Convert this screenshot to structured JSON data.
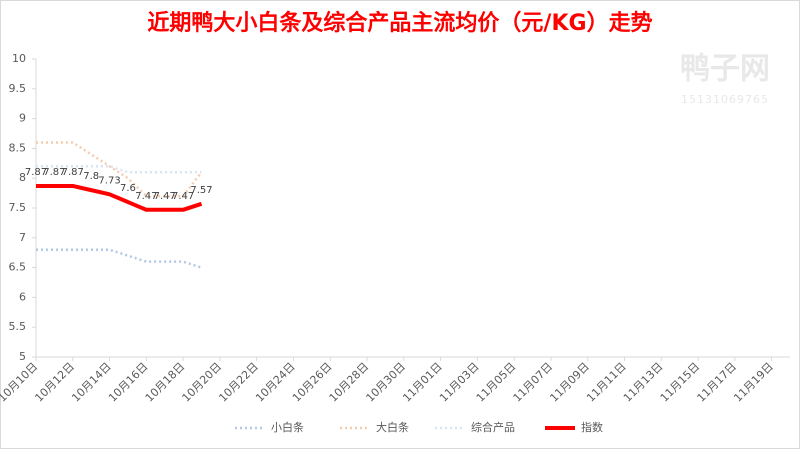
{
  "chart_data": {
    "type": "line",
    "title": "近期鸭大小白条及综合产品主流均价（元/KG）走势",
    "watermark": [
      "鸭子网",
      "15131069765"
    ],
    "categories": [
      "10月10日",
      null,
      "10月12日",
      null,
      "10月14日",
      null,
      "10月16日",
      null,
      "10月18日",
      null,
      "10月20日",
      null,
      "10月22日",
      null,
      "10月24日",
      null,
      "10月26日",
      null,
      "10月28日",
      null,
      "10月30日",
      null,
      "11月01日",
      null,
      "11月03日",
      null,
      "11月05日",
      null,
      "11月07日",
      null,
      "11月09日",
      null,
      "11月11日",
      null,
      "11月13日",
      null,
      "11月15日",
      null,
      "11月17日",
      null,
      "11月19日",
      null
    ],
    "series": [
      {
        "name": "小白条",
        "color": "#b4c7e7",
        "style": "dotted",
        "values": [
          6.8,
          6.8,
          6.8,
          6.8,
          6.8,
          6.7,
          6.6,
          6.6,
          6.6,
          6.5,
          null,
          null,
          null,
          null,
          null,
          null,
          null,
          null,
          null,
          null,
          null,
          null,
          null,
          null,
          null,
          null,
          null,
          null,
          null,
          null,
          null,
          null,
          null,
          null,
          null,
          null,
          null,
          null,
          null,
          null,
          null,
          null
        ]
      },
      {
        "name": "大白条",
        "color": "#f8cbad",
        "style": "dotted",
        "values": [
          8.6,
          8.6,
          8.6,
          8.4,
          8.2,
          8.0,
          7.7,
          7.7,
          7.7,
          8.1,
          null,
          null,
          null,
          null,
          null,
          null,
          null,
          null,
          null,
          null,
          null,
          null,
          null,
          null,
          null,
          null,
          null,
          null,
          null,
          null,
          null,
          null,
          null,
          null,
          null,
          null,
          null,
          null,
          null,
          null,
          null,
          null
        ]
      },
      {
        "name": "综合产品",
        "color": "#dae3f3",
        "style": "dotted",
        "values": [
          8.2,
          8.2,
          8.2,
          8.2,
          8.2,
          8.1,
          8.1,
          8.1,
          8.1,
          8.1,
          null,
          null,
          null,
          null,
          null,
          null,
          null,
          null,
          null,
          null,
          null,
          null,
          null,
          null,
          null,
          null,
          null,
          null,
          null,
          null,
          null,
          null,
          null,
          null,
          null,
          null,
          null,
          null,
          null,
          null,
          null,
          null
        ]
      },
      {
        "name": "指数",
        "color": "#ff0000",
        "style": "thick",
        "labels": true,
        "values": [
          7.87,
          7.87,
          7.87,
          7.8,
          7.73,
          7.6,
          7.47,
          7.47,
          7.47,
          7.57,
          null,
          null,
          null,
          null,
          null,
          null,
          null,
          null,
          null,
          null,
          null,
          null,
          null,
          null,
          null,
          null,
          null,
          null,
          null,
          null,
          null,
          null,
          null,
          null,
          null,
          null,
          null,
          null,
          null,
          null,
          null,
          null
        ]
      }
    ],
    "ylim": [
      5,
      10
    ],
    "yticks": [
      5,
      5.5,
      6,
      6.5,
      7,
      7.5,
      8,
      8.5,
      9,
      9.5,
      10
    ],
    "grid": false,
    "legend": "bottom"
  }
}
